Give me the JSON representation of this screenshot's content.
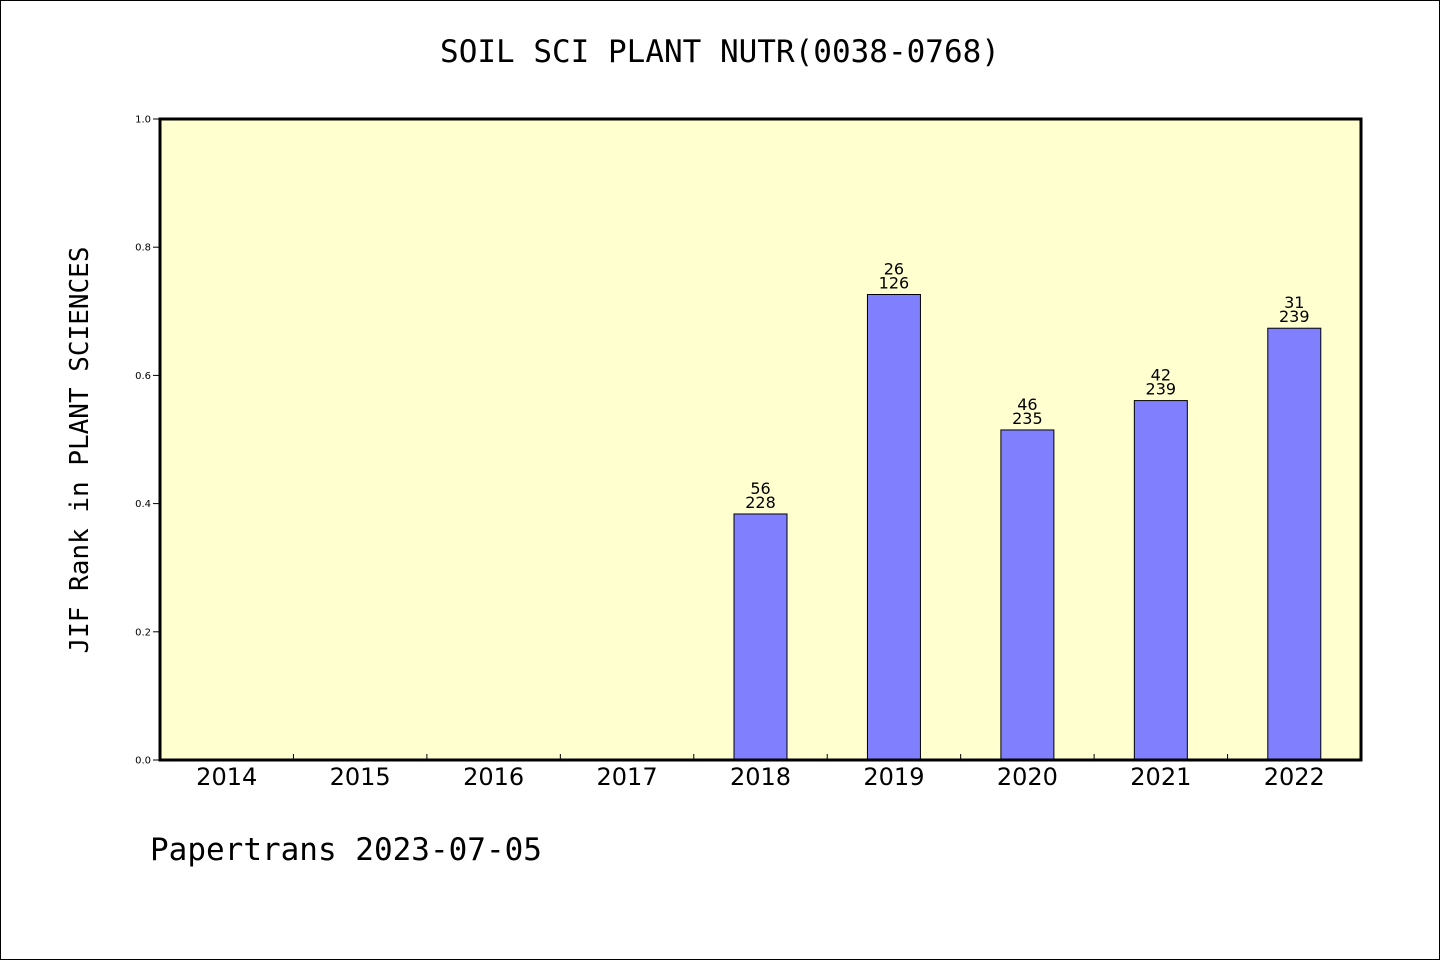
{
  "chart_data": {
    "type": "bar",
    "title": "SOIL SCI PLANT NUTR(0038-0768)",
    "ylabel": "JIF Rank in PLANT SCIENCES",
    "xlabel": "",
    "categories": [
      "2014",
      "2015",
      "2016",
      "2017",
      "2018",
      "2019",
      "2020",
      "2021",
      "2022"
    ],
    "values": [
      null,
      null,
      null,
      null,
      0.3838,
      0.7262,
      0.5149,
      0.5607,
      0.6736
    ],
    "rank_labels": [
      null,
      null,
      null,
      null,
      {
        "rank": "56",
        "total": "228"
      },
      {
        "rank": "26",
        "total": "126"
      },
      {
        "rank": "46",
        "total": "235"
      },
      {
        "rank": "42",
        "total": "239"
      },
      {
        "rank": "31",
        "total": "239"
      }
    ],
    "ylim": [
      0,
      1
    ],
    "yticks": [
      "0.0",
      "0.2",
      "0.4",
      "0.6",
      "0.8",
      "1.0"
    ],
    "grid": false,
    "colors": {
      "plot_bg": "#ffffd0",
      "bar": "#8080ff",
      "axis": "#000000"
    }
  },
  "footer": {
    "text": "Papertrans 2023-07-05"
  }
}
